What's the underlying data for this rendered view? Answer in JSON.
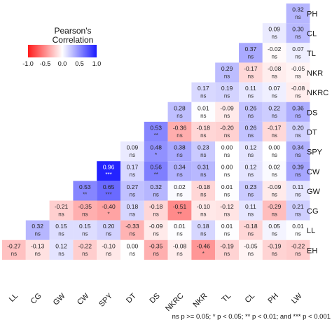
{
  "chart_data": {
    "type": "heatmap",
    "variables": [
      "LL",
      "CG",
      "GW",
      "CW",
      "SPY",
      "DT",
      "DS",
      "NKRC",
      "NKR",
      "TL",
      "CL",
      "PH",
      "LW",
      "EH"
    ],
    "row_labels": [
      "PH",
      "CL",
      "TL",
      "NKR",
      "NKRC",
      "DS",
      "DT",
      "SPY",
      "CW",
      "GW",
      "CG",
      "LL",
      "EH"
    ],
    "column_labels": [
      "LL",
      "CG",
      "GW",
      "CW",
      "SPY",
      "DT",
      "DS",
      "NKRC",
      "NKR",
      "TL",
      "CL",
      "PH",
      "LW"
    ],
    "rows": [
      {
        "label": "PH",
        "cells": [
          {
            "col": "LW",
            "r": 0.32,
            "sig": "ns"
          }
        ]
      },
      {
        "label": "CL",
        "cells": [
          {
            "col": "PH",
            "r": 0.09,
            "sig": "ns"
          },
          {
            "col": "LW",
            "r": 0.3,
            "sig": "ns"
          }
        ]
      },
      {
        "label": "TL",
        "cells": [
          {
            "col": "CL",
            "r": 0.37,
            "sig": "ns"
          },
          {
            "col": "PH",
            "r": -0.02,
            "sig": "ns"
          },
          {
            "col": "LW",
            "r": 0.07,
            "sig": "ns"
          }
        ]
      },
      {
        "label": "NKR",
        "cells": [
          {
            "col": "TL",
            "r": 0.29,
            "sig": "ns"
          },
          {
            "col": "CL",
            "r": -0.17,
            "sig": "ns"
          },
          {
            "col": "PH",
            "r": -0.08,
            "sig": "ns"
          },
          {
            "col": "LW",
            "r": -0.05,
            "sig": "ns"
          }
        ]
      },
      {
        "label": "NKRC",
        "cells": [
          {
            "col": "NKR",
            "r": 0.17,
            "sig": "ns"
          },
          {
            "col": "TL",
            "r": 0.19,
            "sig": "ns"
          },
          {
            "col": "CL",
            "r": 0.11,
            "sig": "ns"
          },
          {
            "col": "PH",
            "r": 0.07,
            "sig": "ns"
          },
          {
            "col": "LW",
            "r": -0.08,
            "sig": "ns"
          }
        ]
      },
      {
        "label": "DS",
        "cells": [
          {
            "col": "NKRC",
            "r": 0.28,
            "sig": "ns"
          },
          {
            "col": "NKR",
            "r": 0.01,
            "sig": "ns"
          },
          {
            "col": "TL",
            "r": -0.09,
            "sig": "ns"
          },
          {
            "col": "CL",
            "r": 0.26,
            "sig": "ns"
          },
          {
            "col": "PH",
            "r": 0.22,
            "sig": "ns"
          },
          {
            "col": "LW",
            "r": 0.36,
            "sig": "ns"
          }
        ]
      },
      {
        "label": "DT",
        "cells": [
          {
            "col": "DS",
            "r": 0.53,
            "sig": "**"
          },
          {
            "col": "NKRC",
            "r": -0.36,
            "sig": "ns"
          },
          {
            "col": "NKR",
            "r": -0.18,
            "sig": "ns"
          },
          {
            "col": "TL",
            "r": -0.2,
            "sig": "ns"
          },
          {
            "col": "CL",
            "r": 0.26,
            "sig": "ns"
          },
          {
            "col": "PH",
            "r": -0.17,
            "sig": "ns"
          },
          {
            "col": "LW",
            "r": 0.2,
            "sig": "ns"
          }
        ]
      },
      {
        "label": "SPY",
        "cells": [
          {
            "col": "DT",
            "r": 0.09,
            "sig": "ns"
          },
          {
            "col": "DS",
            "r": 0.48,
            "sig": "*"
          },
          {
            "col": "NKRC",
            "r": 0.38,
            "sig": "ns"
          },
          {
            "col": "NKR",
            "r": 0.23,
            "sig": "ns"
          },
          {
            "col": "TL",
            "r": 0.0,
            "sig": "ns"
          },
          {
            "col": "CL",
            "r": 0.12,
            "sig": "ns"
          },
          {
            "col": "PH",
            "r": 0.0,
            "sig": "ns"
          },
          {
            "col": "LW",
            "r": 0.34,
            "sig": "ns"
          }
        ]
      },
      {
        "label": "CW",
        "cells": [
          {
            "col": "SPY",
            "r": 0.96,
            "sig": "***"
          },
          {
            "col": "DT",
            "r": 0.17,
            "sig": "ns"
          },
          {
            "col": "DS",
            "r": 0.56,
            "sig": "**"
          },
          {
            "col": "NKRC",
            "r": 0.34,
            "sig": "ns"
          },
          {
            "col": "NKR",
            "r": 0.31,
            "sig": "ns"
          },
          {
            "col": "TL",
            "r": 0.0,
            "sig": "ns"
          },
          {
            "col": "CL",
            "r": 0.12,
            "sig": "ns"
          },
          {
            "col": "PH",
            "r": 0.02,
            "sig": "ns"
          },
          {
            "col": "LW",
            "r": 0.39,
            "sig": "ns"
          }
        ]
      },
      {
        "label": "GW",
        "cells": [
          {
            "col": "CW",
            "r": 0.53,
            "sig": "**"
          },
          {
            "col": "SPY",
            "r": 0.65,
            "sig": "***"
          },
          {
            "col": "DT",
            "r": 0.27,
            "sig": "ns"
          },
          {
            "col": "DS",
            "r": 0.32,
            "sig": "ns"
          },
          {
            "col": "NKRC",
            "r": 0.02,
            "sig": "ns"
          },
          {
            "col": "NKR",
            "r": -0.18,
            "sig": "ns"
          },
          {
            "col": "TL",
            "r": 0.01,
            "sig": "ns"
          },
          {
            "col": "CL",
            "r": 0.23,
            "sig": "ns"
          },
          {
            "col": "PH",
            "r": -0.09,
            "sig": "ns"
          },
          {
            "col": "LW",
            "r": 0.11,
            "sig": "ns"
          }
        ]
      },
      {
        "label": "CG",
        "cells": [
          {
            "col": "GW",
            "r": -0.21,
            "sig": "ns"
          },
          {
            "col": "CW",
            "r": -0.35,
            "sig": "ns"
          },
          {
            "col": "SPY",
            "r": -0.4,
            "sig": "*"
          },
          {
            "col": "DT",
            "r": 0.18,
            "sig": "ns"
          },
          {
            "col": "DS",
            "r": -0.18,
            "sig": "ns"
          },
          {
            "col": "NKRC",
            "r": -0.51,
            "sig": "**"
          },
          {
            "col": "NKR",
            "r": -0.1,
            "sig": "ns"
          },
          {
            "col": "TL",
            "r": -0.12,
            "sig": "ns"
          },
          {
            "col": "CL",
            "r": 0.11,
            "sig": "ns"
          },
          {
            "col": "PH",
            "r": -0.29,
            "sig": "ns"
          },
          {
            "col": "LW",
            "r": 0.21,
            "sig": "ns"
          }
        ]
      },
      {
        "label": "LL",
        "cells": [
          {
            "col": "CG",
            "r": 0.32,
            "sig": "ns"
          },
          {
            "col": "GW",
            "r": 0.15,
            "sig": "ns"
          },
          {
            "col": "CW",
            "r": 0.15,
            "sig": "ns"
          },
          {
            "col": "SPY",
            "r": 0.2,
            "sig": "ns"
          },
          {
            "col": "DT",
            "r": -0.33,
            "sig": "ns"
          },
          {
            "col": "DS",
            "r": -0.09,
            "sig": "ns"
          },
          {
            "col": "NKRC",
            "r": 0.01,
            "sig": "ns"
          },
          {
            "col": "NKR",
            "r": 0.18,
            "sig": "ns"
          },
          {
            "col": "TL",
            "r": 0.01,
            "sig": "ns"
          },
          {
            "col": "CL",
            "r": -0.18,
            "sig": "ns"
          },
          {
            "col": "PH",
            "r": 0.05,
            "sig": "ns"
          },
          {
            "col": "LW",
            "r": 0.01,
            "sig": "ns"
          }
        ]
      },
      {
        "label": "EH",
        "cells": [
          {
            "col": "LL",
            "r": -0.27,
            "sig": "ns"
          },
          {
            "col": "CG",
            "r": -0.13,
            "sig": "ns"
          },
          {
            "col": "GW",
            "r": 0.12,
            "sig": "ns"
          },
          {
            "col": "CW",
            "r": -0.22,
            "sig": "ns"
          },
          {
            "col": "SPY",
            "r": -0.1,
            "sig": "ns"
          },
          {
            "col": "DT",
            "r": 0.0,
            "sig": "ns"
          },
          {
            "col": "DS",
            "r": -0.35,
            "sig": "ns"
          },
          {
            "col": "NKRC",
            "r": -0.08,
            "sig": "ns"
          },
          {
            "col": "NKR",
            "r": -0.46,
            "sig": "*"
          },
          {
            "col": "TL",
            "r": -0.19,
            "sig": "ns"
          },
          {
            "col": "CL",
            "r": -0.05,
            "sig": "ns"
          },
          {
            "col": "PH",
            "r": -0.19,
            "sig": "ns"
          },
          {
            "col": "LW",
            "r": -0.22,
            "sig": "ns"
          }
        ]
      }
    ],
    "legend": {
      "title": "Pearson's Correlation",
      "ticks": [
        "-1.0",
        "-0.5",
        "0.0",
        "0.5",
        "1.0"
      ],
      "range": [
        -1,
        1
      ],
      "colors": {
        "negative": "#ff1a1a",
        "zero": "#ffffff",
        "positive": "#1a1aff"
      },
      "placement": "top-left"
    },
    "footnote": "ns p >= 0.05; * p < 0.05; ** p < 0.01; and *** p < 0.001"
  }
}
